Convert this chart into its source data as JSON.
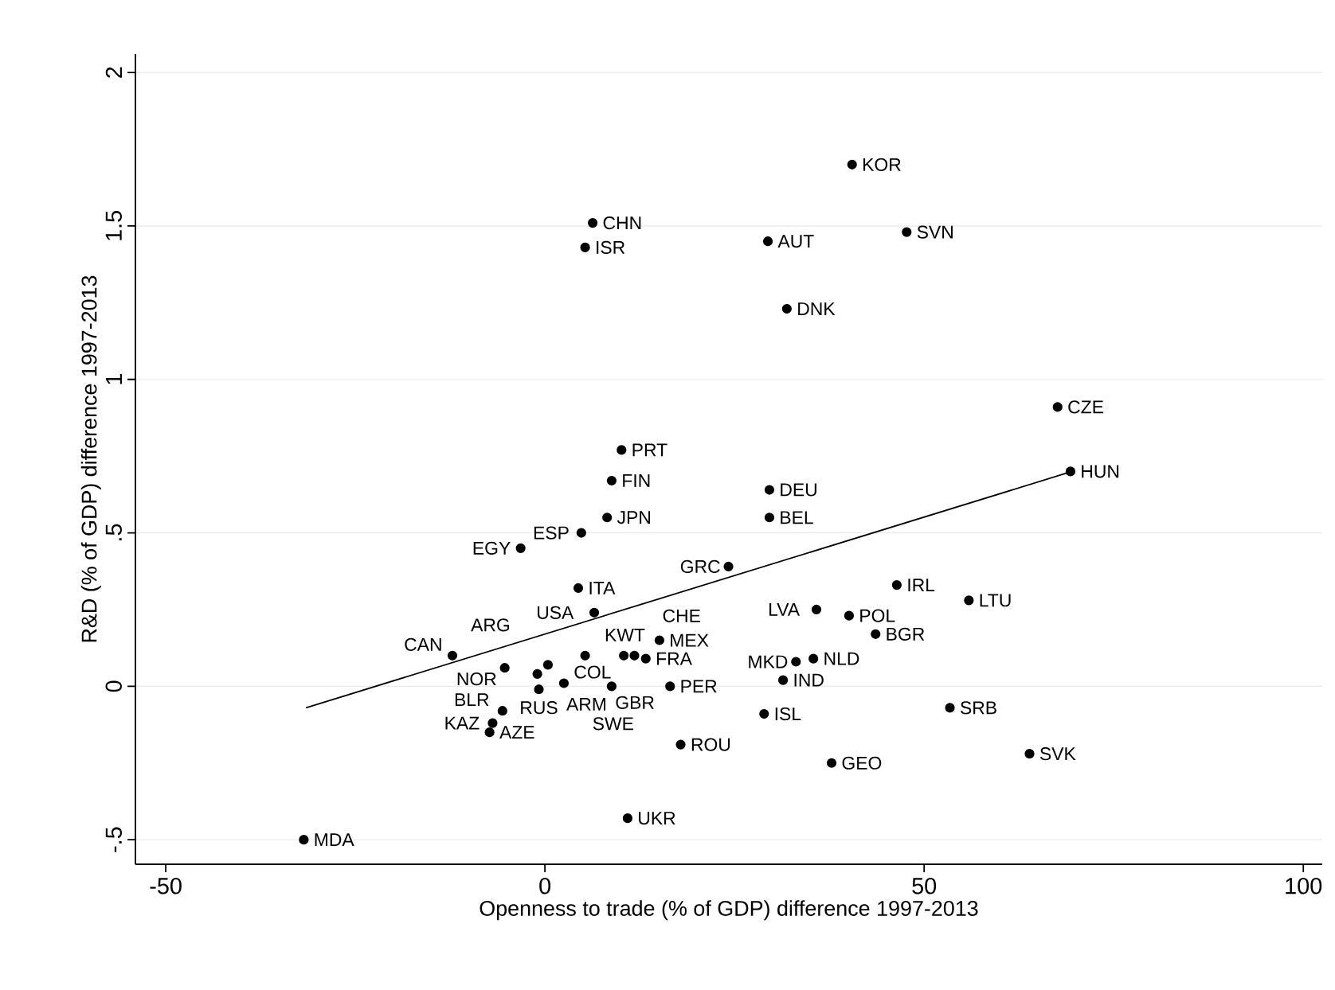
{
  "chart_data": {
    "type": "scatter",
    "xlabel": "Openness to trade (% of GDP) difference 1997-2013",
    "ylabel": "R&D (% of GDP) difference 1997-2013",
    "xlim": [
      -54,
      102.5
    ],
    "xticks": [
      -50,
      0,
      50,
      100
    ],
    "ylim": [
      -0.58,
      2.06
    ],
    "yticks": [
      {
        "value": -0.5,
        "label": "-.5"
      },
      0,
      {
        "value": 0.5,
        "label": ".5"
      },
      1,
      1.5,
      2
    ],
    "grid": "y",
    "marker": "circle",
    "series": [
      {
        "color": "#000000",
        "x": [
          40.5,
          6.3,
          5.3,
          29.4,
          47.7,
          31.9,
          67.6,
          10.1,
          69.3,
          8.8,
          29.6,
          8.2,
          29.6,
          4.8,
          -3.2,
          24.2,
          4.4,
          46.4,
          55.9,
          6.5,
          35.8,
          40.1,
          43.6,
          15.1,
          -12.2,
          5.3,
          10.4,
          11.8,
          13.3,
          -5.3,
          -1.0,
          0.4,
          2.5,
          -0.8,
          8.8,
          16.5,
          -5.6,
          -6.9,
          -7.3,
          17.9,
          31.4,
          28.9,
          33.1,
          35.4,
          53.4,
          63.9,
          37.8,
          10.9,
          -31.8
        ],
        "values": [
          1.7,
          1.51,
          1.43,
          1.45,
          1.48,
          1.23,
          0.91,
          0.77,
          0.7,
          0.67,
          0.64,
          0.55,
          0.55,
          0.5,
          0.45,
          0.39,
          0.32,
          0.33,
          0.28,
          0.24,
          0.25,
          0.23,
          0.17,
          0.15,
          0.1,
          0.1,
          0.1,
          0.1,
          0.09,
          0.06,
          0.04,
          0.07,
          0.01,
          -0.01,
          0.0,
          0.0,
          -0.08,
          -0.12,
          -0.15,
          -0.19,
          0.02,
          -0.09,
          0.08,
          0.09,
          -0.07,
          -0.22,
          -0.25,
          -0.43,
          -0.5
        ]
      },
      {
        "type": "line",
        "color": "#000000",
        "marker": "none",
        "x": [
          -31.5,
          69.5
        ],
        "values": [
          -0.07,
          0.7
        ]
      }
    ],
    "annotations": [
      {
        "text": "KOR",
        "x": 40.5,
        "y": 1.7
      },
      {
        "text": "CHN",
        "x": 6.3,
        "y": 1.51
      },
      {
        "text": "ISR",
        "x": 5.3,
        "y": 1.43
      },
      {
        "text": "AUT",
        "x": 29.4,
        "y": 1.45
      },
      {
        "text": "SVN",
        "x": 47.7,
        "y": 1.48
      },
      {
        "text": "DNK",
        "x": 31.9,
        "y": 1.23
      },
      {
        "text": "CZE",
        "x": 67.6,
        "y": 0.91
      },
      {
        "text": "PRT",
        "x": 10.1,
        "y": 0.77
      },
      {
        "text": "HUN",
        "x": 69.3,
        "y": 0.7
      },
      {
        "text": "FIN",
        "x": 8.8,
        "y": 0.67
      },
      {
        "text": "DEU",
        "x": 29.6,
        "y": 0.64
      },
      {
        "text": "JPN",
        "x": 8.2,
        "y": 0.55
      },
      {
        "text": "BEL",
        "x": 29.6,
        "y": 0.55
      },
      {
        "text": "ESP",
        "x": 4.8,
        "y": 0.5
      },
      {
        "text": "EGY",
        "x": -3.2,
        "y": 0.45
      },
      {
        "text": "GRC",
        "x": 24.2,
        "y": 0.39
      },
      {
        "text": "ITA",
        "x": 4.4,
        "y": 0.32
      },
      {
        "text": "IRL",
        "x": 46.4,
        "y": 0.33
      },
      {
        "text": "LTU",
        "x": 55.9,
        "y": 0.28
      },
      {
        "text": "USA",
        "x": 6.5,
        "y": 0.24
      },
      {
        "text": "LVA",
        "x": 35.8,
        "y": 0.25
      },
      {
        "text": "POL",
        "x": 40.1,
        "y": 0.23
      },
      {
        "text": "BGR",
        "x": 43.6,
        "y": 0.17
      },
      {
        "text": "MEX",
        "x": 15.1,
        "y": 0.15
      },
      {
        "text": "CAN",
        "x": -12.2,
        "y": 0.1
      },
      {
        "text": "KWT",
        "x": 5.3,
        "y": 0.1
      },
      {
        "text": "CHE",
        "x": 10.4,
        "y": 0.1
      },
      {
        "text": "GBR",
        "x": 11.8,
        "y": 0.1
      },
      {
        "text": "FRA",
        "x": 13.3,
        "y": 0.09
      },
      {
        "text": "NOR",
        "x": -5.3,
        "y": 0.06
      },
      {
        "text": "ARM",
        "x": -1.0,
        "y": 0.04
      },
      {
        "text": "ARG",
        "x": 0.4,
        "y": 0.07
      },
      {
        "text": "COL",
        "x": 2.5,
        "y": 0.01
      },
      {
        "text": "RUS",
        "x": -0.8,
        "y": -0.01
      },
      {
        "text": "SWE",
        "x": 8.8,
        "y": 0.0
      },
      {
        "text": "PER",
        "x": 16.5,
        "y": 0.0
      },
      {
        "text": "BLR",
        "x": -5.6,
        "y": -0.08
      },
      {
        "text": "KAZ",
        "x": -6.9,
        "y": -0.12
      },
      {
        "text": "AZE",
        "x": -7.3,
        "y": -0.15
      },
      {
        "text": "ROU",
        "x": 17.9,
        "y": -0.19
      },
      {
        "text": "IND",
        "x": 31.4,
        "y": 0.02
      },
      {
        "text": "ISL",
        "x": 28.9,
        "y": -0.09
      },
      {
        "text": "MKD",
        "x": 33.1,
        "y": 0.08
      },
      {
        "text": "NLD",
        "x": 35.4,
        "y": 0.09
      },
      {
        "text": "SRB",
        "x": 53.4,
        "y": -0.07
      },
      {
        "text": "SVK",
        "x": 63.9,
        "y": -0.22
      },
      {
        "text": "GEO",
        "x": 37.8,
        "y": -0.25
      },
      {
        "text": "UKR",
        "x": 10.9,
        "y": -0.43
      },
      {
        "text": "MDA",
        "x": -31.8,
        "y": -0.5
      }
    ]
  }
}
